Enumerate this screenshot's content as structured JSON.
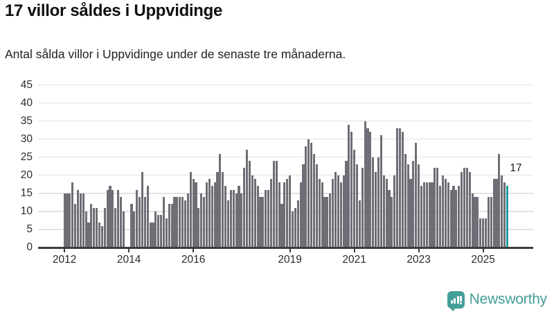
{
  "header": {
    "title": "17 villor såldes i Uppvidinge",
    "subtitle": "Antal sålda villor i Uppvidinge under de senaste tre månaderna."
  },
  "chart_data": {
    "type": "bar",
    "title": "17 villor såldes i Uppvidinge",
    "xlabel": "",
    "ylabel": "",
    "ylim": [
      0,
      45
    ],
    "grid": "horizontal",
    "frequency": "monthly",
    "start_year_label": "2012",
    "y_ticks": [
      0,
      5,
      10,
      15,
      20,
      25,
      30,
      35,
      40,
      45
    ],
    "x_ticks": [
      {
        "label": "2012",
        "month": 0
      },
      {
        "label": "2014",
        "month": 24
      },
      {
        "label": "2016",
        "month": 48
      },
      {
        "label": "2019",
        "month": 84
      },
      {
        "label": "2021",
        "month": 108
      },
      {
        "label": "2023",
        "month": 132
      },
      {
        "label": "2025",
        "month": 156
      }
    ],
    "values": [
      15,
      15,
      15,
      18,
      12,
      16,
      15,
      15,
      10,
      7,
      12,
      11,
      11,
      7,
      6,
      11,
      16,
      17,
      16,
      11,
      16,
      14,
      10,
      0,
      0,
      12,
      10,
      16,
      14,
      21,
      14,
      17,
      7,
      7,
      10,
      9,
      9,
      14,
      8,
      12,
      12,
      14,
      14,
      14,
      14,
      13,
      15,
      21,
      19,
      18,
      11,
      15,
      14,
      18,
      19,
      17,
      18,
      21,
      26,
      21,
      17,
      13,
      16,
      16,
      15,
      17,
      15,
      22,
      27,
      24,
      20,
      19,
      17,
      14,
      14,
      16,
      16,
      19,
      24,
      24,
      18,
      12,
      18,
      19,
      20,
      10,
      11,
      13,
      18,
      23,
      28,
      30,
      29,
      26,
      23,
      19,
      18,
      14,
      14,
      15,
      19,
      21,
      20,
      18,
      20,
      24,
      34,
      32,
      27,
      23,
      13,
      22,
      35,
      33,
      32,
      25,
      21,
      25,
      31,
      20,
      19,
      16,
      14,
      20,
      33,
      33,
      32,
      26,
      23,
      19,
      24,
      29,
      23,
      17,
      18,
      18,
      18,
      18,
      22,
      22,
      17,
      20,
      19,
      18,
      16,
      17,
      16,
      17,
      21,
      22,
      22,
      21,
      15,
      14,
      14,
      8,
      8,
      8,
      14,
      14,
      19,
      19,
      26,
      20,
      18,
      17
    ],
    "highlight_index": 165,
    "annotation": {
      "text": "17"
    },
    "colors": {
      "bar": "#6e6e76",
      "highlight": "#1b9e9e",
      "gridline": "#e2e2e2",
      "axis": "#3c3c3c",
      "tick_text": "#2b2b2b"
    }
  },
  "footer": {
    "brand": "Newsworthy"
  }
}
